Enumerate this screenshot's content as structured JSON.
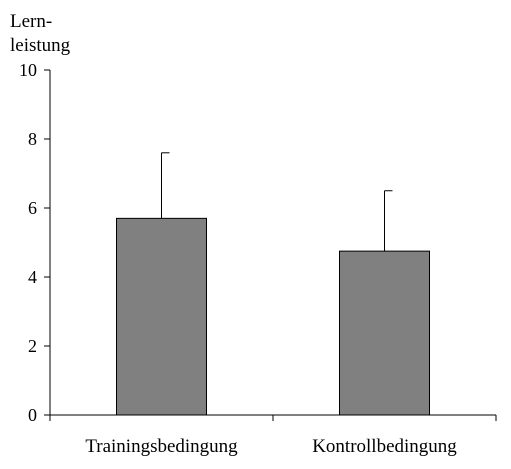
{
  "chart_data": {
    "type": "bar",
    "title": "",
    "xlabel": "",
    "ylabel_lines": [
      "Lern-",
      "leistung"
    ],
    "categories": [
      "Trainingsbedingung",
      "Kontrollbedingung"
    ],
    "values": [
      5.7,
      4.75
    ],
    "error_upper": [
      7.6,
      6.5
    ],
    "ylim": [
      0,
      10
    ],
    "yticks": [
      0,
      2,
      4,
      6,
      8,
      10
    ],
    "bar_color": "#808080",
    "grid": false,
    "legend": false
  }
}
